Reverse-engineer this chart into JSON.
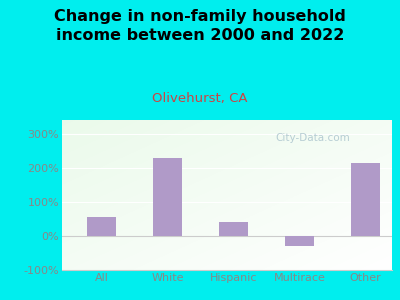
{
  "title": "Change in non-family household\nincome between 2000 and 2022",
  "subtitle": "Olivehurst, CA",
  "categories": [
    "All",
    "White",
    "Hispanic",
    "Multirace",
    "Other"
  ],
  "values": [
    55,
    230,
    40,
    -30,
    215
  ],
  "bar_color": "#b09ac8",
  "title_fontsize": 11.5,
  "subtitle_fontsize": 9.5,
  "subtitle_color": "#cc4444",
  "title_color": "#000000",
  "background_color": "#00eeee",
  "ylim": [
    -100,
    340
  ],
  "yticks": [
    -100,
    0,
    100,
    200,
    300
  ],
  "watermark": "City-Data.com",
  "watermark_color": "#b0c8d0",
  "tick_label_color": "#888888",
  "grid_color": "#dddddd"
}
